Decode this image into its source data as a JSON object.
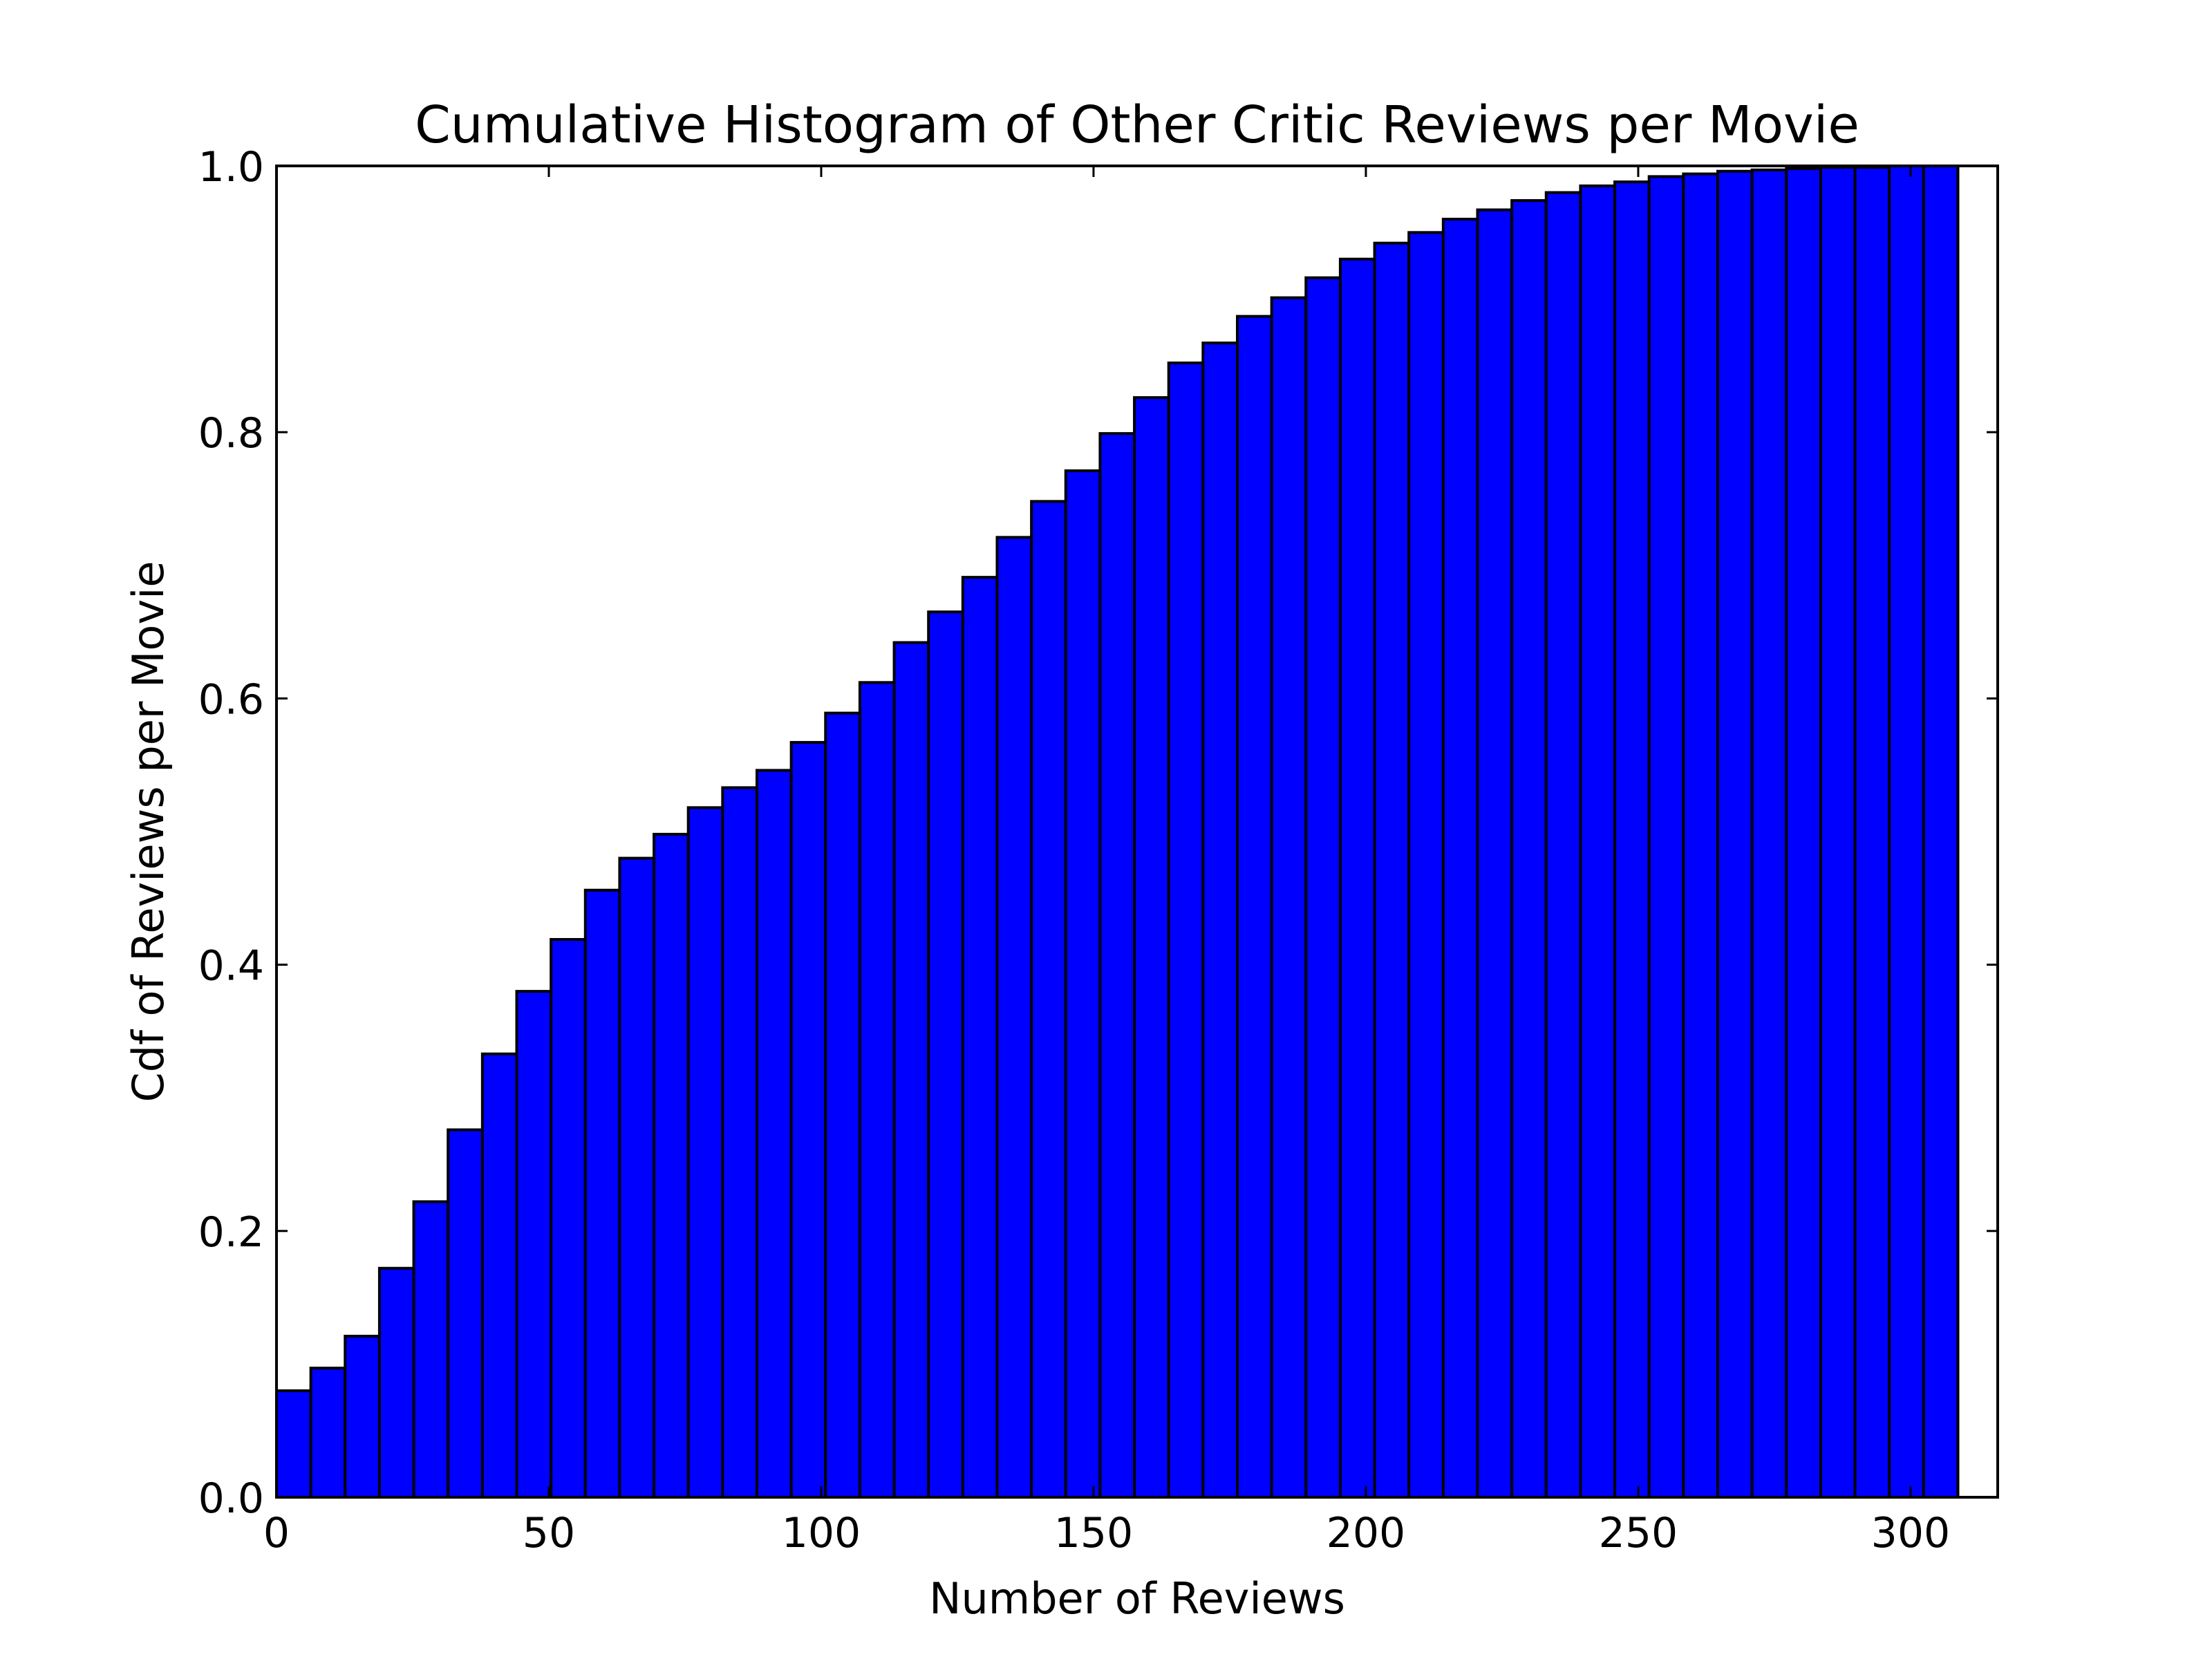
{
  "chart_data": {
    "type": "bar",
    "title": "Cumulative Histogram of Other Critic Reviews per Movie",
    "xlabel": "Number of Reviews",
    "ylabel": "Cdf of Reviews per Movie",
    "xlim": [
      0,
      316
    ],
    "ylim": [
      0.0,
      1.0
    ],
    "bin_width": 6.3,
    "x_ticks": [
      0,
      50,
      100,
      150,
      200,
      250,
      300
    ],
    "x_tick_labels": [
      "0",
      "50",
      "100",
      "150",
      "200",
      "250",
      "300"
    ],
    "y_ticks": [
      0.0,
      0.2,
      0.4,
      0.6,
      0.8,
      1.0
    ],
    "y_tick_labels": [
      "0.0",
      "0.2",
      "0.4",
      "0.6",
      "0.8",
      "1.0"
    ],
    "grid": false,
    "legend": false,
    "bar_color": "#0000ff",
    "edge_color": "#000000",
    "series": [
      {
        "values": [
          0.08,
          0.097,
          0.121,
          0.172,
          0.222,
          0.276,
          0.333,
          0.38,
          0.419,
          0.456,
          0.48,
          0.498,
          0.518,
          0.533,
          0.546,
          0.567,
          0.589,
          0.612,
          0.642,
          0.665,
          0.691,
          0.721,
          0.748,
          0.771,
          0.799,
          0.826,
          0.852,
          0.867,
          0.887,
          0.901,
          0.916,
          0.93,
          0.942,
          0.95,
          0.96,
          0.967,
          0.974,
          0.98,
          0.985,
          0.988,
          0.992,
          0.994,
          0.996,
          0.997,
          0.998,
          0.999,
          0.999,
          1.0,
          1.0
        ]
      }
    ]
  }
}
